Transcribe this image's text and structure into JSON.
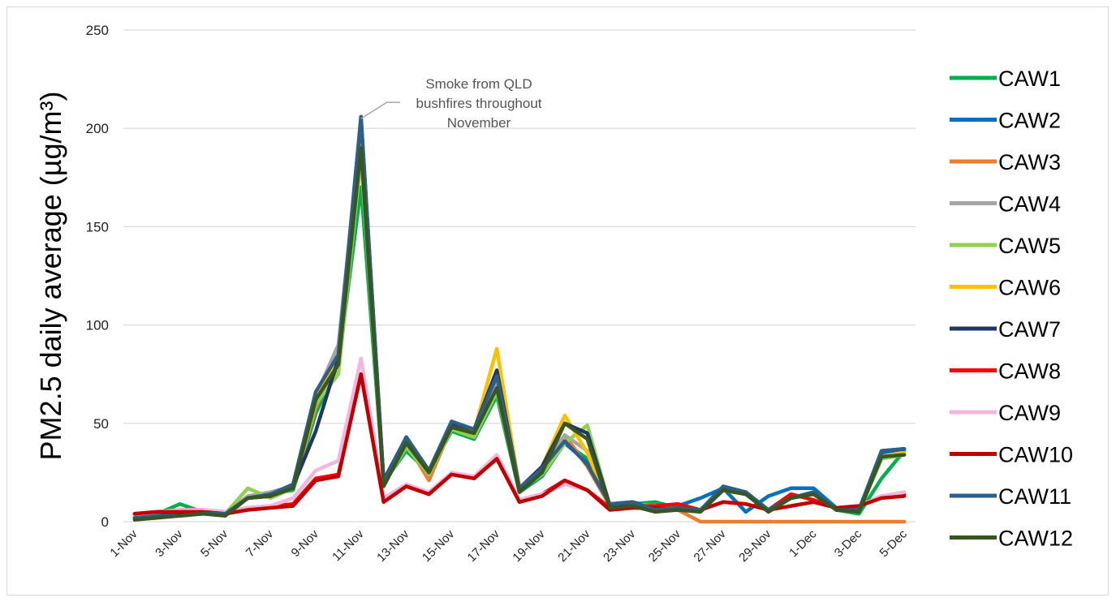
{
  "chart_data": {
    "type": "line",
    "title": "",
    "xlabel": "",
    "ylabel": "PM2.5 daily average (µg/m³)",
    "ylim": [
      0,
      250
    ],
    "yticks": [
      "0",
      "50",
      "100",
      "150",
      "200",
      "250"
    ],
    "grid": true,
    "legend_position": "right",
    "categories": [
      "1-Nov",
      "2-Nov",
      "3-Nov",
      "4-Nov",
      "5-Nov",
      "6-Nov",
      "7-Nov",
      "8-Nov",
      "9-Nov",
      "10-Nov",
      "11-Nov",
      "12-Nov",
      "13-Nov",
      "14-Nov",
      "15-Nov",
      "16-Nov",
      "17-Nov",
      "18-Nov",
      "19-Nov",
      "20-Nov",
      "21-Nov",
      "22-Nov",
      "23-Nov",
      "24-Nov",
      "25-Nov",
      "26-Nov",
      "27-Nov",
      "28-Nov",
      "29-Nov",
      "30-Nov",
      "1-Dec",
      "2-Dec",
      "3-Dec",
      "4-Dec",
      "5-Dec"
    ],
    "x_tick_labels": [
      "1-Nov",
      "3-Nov",
      "5-Nov",
      "7-Nov",
      "9-Nov",
      "11-Nov",
      "13-Nov",
      "15-Nov",
      "17-Nov",
      "19-Nov",
      "21-Nov",
      "23-Nov",
      "25-Nov",
      "27-Nov",
      "29-Nov",
      "1-Dec",
      "3-Dec",
      "5-Dec"
    ],
    "annotation": {
      "lines": [
        "Smoke from QLD",
        "bushfires throughout",
        "November"
      ],
      "points_to": {
        "category": "11-Nov",
        "value": 205
      }
    },
    "series": [
      {
        "name": "CAW1",
        "color": "#00b050",
        "values": [
          1,
          4,
          9,
          5,
          4,
          12,
          14,
          16,
          55,
          80,
          170,
          20,
          36,
          25,
          46,
          42,
          64,
          15,
          23,
          40,
          32,
          8,
          9,
          10,
          7,
          6,
          16,
          15,
          6,
          12,
          15,
          6,
          4,
          22,
          36
        ]
      },
      {
        "name": "CAW2",
        "color": "#0070c0",
        "values": [
          2,
          3,
          4,
          5,
          4,
          13,
          14,
          18,
          60,
          85,
          200,
          19,
          42,
          24,
          50,
          46,
          74,
          16,
          26,
          40,
          30,
          9,
          10,
          7,
          8,
          12,
          17,
          5,
          13,
          17,
          17,
          7,
          6,
          35,
          37
        ]
      },
      {
        "name": "CAW3",
        "color": "#ed7d31",
        "values": [
          2,
          3,
          4,
          5,
          4,
          12,
          13,
          17,
          58,
          82,
          190,
          20,
          40,
          21,
          48,
          44,
          70,
          16,
          27,
          44,
          28,
          8,
          9,
          6,
          6,
          0,
          0,
          0,
          0,
          0,
          0,
          0,
          0,
          0,
          0
        ]
      },
      {
        "name": "CAW4",
        "color": "#a5a5a5",
        "values": [
          2,
          3,
          4,
          5,
          4,
          13,
          15,
          18,
          64,
          90,
          200,
          21,
          41,
          24,
          49,
          45,
          72,
          17,
          27,
          44,
          36,
          8,
          9,
          6,
          7,
          6,
          16,
          14,
          6,
          12,
          15,
          6,
          6,
          32,
          35
        ]
      },
      {
        "name": "CAW5",
        "color": "#92d050",
        "values": [
          2,
          3,
          4,
          5,
          4,
          17,
          12,
          17,
          60,
          75,
          185,
          19,
          38,
          24,
          47,
          43,
          66,
          16,
          24,
          40,
          49,
          8,
          9,
          8,
          7,
          6,
          16,
          14,
          6,
          12,
          15,
          6,
          5,
          32,
          34
        ]
      },
      {
        "name": "CAW6",
        "color": "#ffc000",
        "values": [
          2,
          3,
          4,
          5,
          4,
          12,
          13,
          17,
          62,
          84,
          195,
          20,
          40,
          25,
          49,
          46,
          88,
          17,
          28,
          54,
          35,
          8,
          9,
          6,
          7,
          6,
          16,
          14,
          6,
          12,
          15,
          6,
          6,
          33,
          35
        ]
      },
      {
        "name": "CAW7",
        "color": "#203864",
        "values": [
          2,
          3,
          4,
          5,
          4,
          12,
          13,
          18,
          46,
          83,
          205,
          21,
          43,
          26,
          50,
          47,
          77,
          17,
          28,
          50,
          45,
          8,
          10,
          6,
          7,
          6,
          17,
          15,
          6,
          12,
          15,
          6,
          6,
          36,
          37
        ]
      },
      {
        "name": "CAW8",
        "color": "#ff0000",
        "values": [
          4,
          5,
          6,
          6,
          5,
          7,
          8,
          9,
          22,
          24,
          75,
          11,
          18,
          14,
          24,
          22,
          32,
          11,
          14,
          21,
          16,
          7,
          8,
          8,
          9,
          6,
          10,
          9,
          6,
          14,
          11,
          7,
          8,
          13,
          14
        ]
      },
      {
        "name": "CAW9",
        "color": "#f4b6dd",
        "values": [
          3,
          5,
          6,
          6,
          5,
          7,
          8,
          12,
          26,
          31,
          83,
          12,
          19,
          15,
          25,
          23,
          34,
          11,
          14,
          19,
          16,
          6,
          7,
          6,
          6,
          6,
          10,
          9,
          6,
          8,
          10,
          7,
          8,
          13,
          15
        ]
      },
      {
        "name": "CAW10",
        "color": "#c00000",
        "values": [
          4,
          5,
          5,
          5,
          4,
          6,
          7,
          8,
          21,
          23,
          75,
          10,
          18,
          14,
          24,
          22,
          32,
          10,
          13,
          21,
          16,
          6,
          7,
          7,
          6,
          6,
          10,
          9,
          6,
          8,
          10,
          7,
          8,
          12,
          13
        ]
      },
      {
        "name": "CAW11",
        "color": "#2e5f8a",
        "values": [
          2,
          3,
          3,
          4,
          4,
          12,
          14,
          19,
          66,
          85,
          206,
          20,
          43,
          26,
          51,
          47,
          74,
          17,
          27,
          41,
          29,
          9,
          10,
          6,
          7,
          6,
          18,
          15,
          6,
          12,
          15,
          6,
          6,
          36,
          37
        ]
      },
      {
        "name": "CAW12",
        "color": "#375623",
        "values": [
          1,
          2,
          3,
          4,
          3,
          12,
          13,
          17,
          62,
          80,
          190,
          18,
          40,
          25,
          48,
          45,
          68,
          15,
          25,
          50,
          42,
          7,
          8,
          5,
          6,
          5,
          16,
          14,
          5,
          12,
          14,
          6,
          5,
          33,
          34
        ]
      }
    ]
  }
}
